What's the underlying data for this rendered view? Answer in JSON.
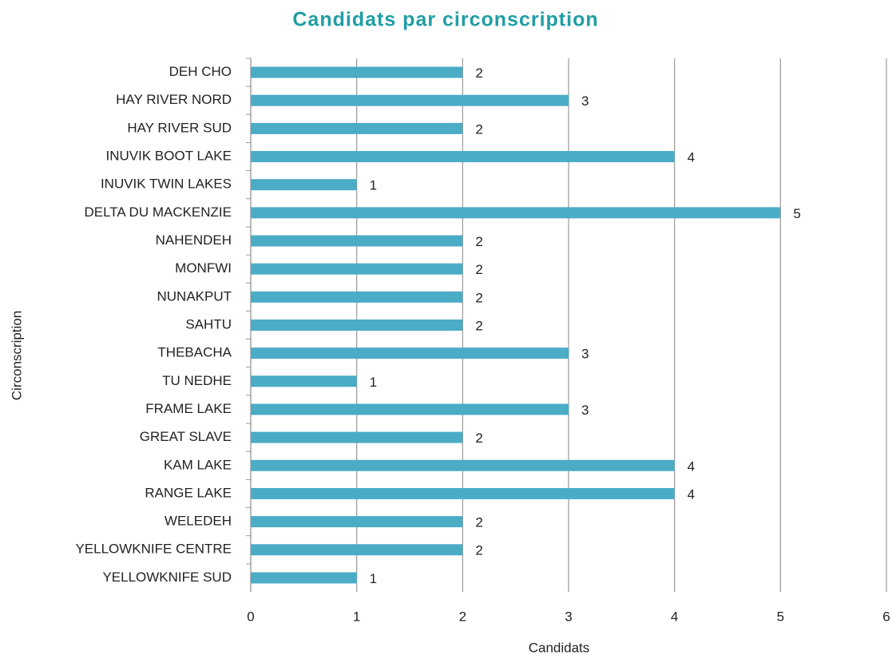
{
  "chart_data": {
    "type": "bar",
    "orientation": "horizontal",
    "title": "Candidats par circonscription",
    "x_label": "Candidats",
    "y_label": "Circonscription",
    "categories": [
      "DEH CHO",
      "HAY RIVER NORD",
      "HAY RIVER SUD",
      "INUVIK BOOT LAKE",
      "INUVIK TWIN LAKES",
      "DELTA DU MACKENZIE",
      "NAHENDEH",
      "MONFWI",
      "NUNAKPUT",
      "SAHTU",
      "THEBACHA",
      "TU NEDHE",
      "FRAME LAKE",
      "GREAT SLAVE",
      "KAM LAKE",
      "RANGE LAKE",
      "WELEDEH",
      "YELLOWKNIFE CENTRE",
      "YELLOWKNIFE SUD"
    ],
    "values": [
      2,
      3,
      2,
      4,
      1,
      5,
      2,
      2,
      2,
      2,
      3,
      1,
      3,
      2,
      4,
      4,
      2,
      2,
      1
    ],
    "color": "#4bacc6",
    "xlim": [
      0,
      6
    ],
    "xticks": [
      0,
      1,
      2,
      3,
      4,
      5,
      6
    ],
    "grid": true
  }
}
